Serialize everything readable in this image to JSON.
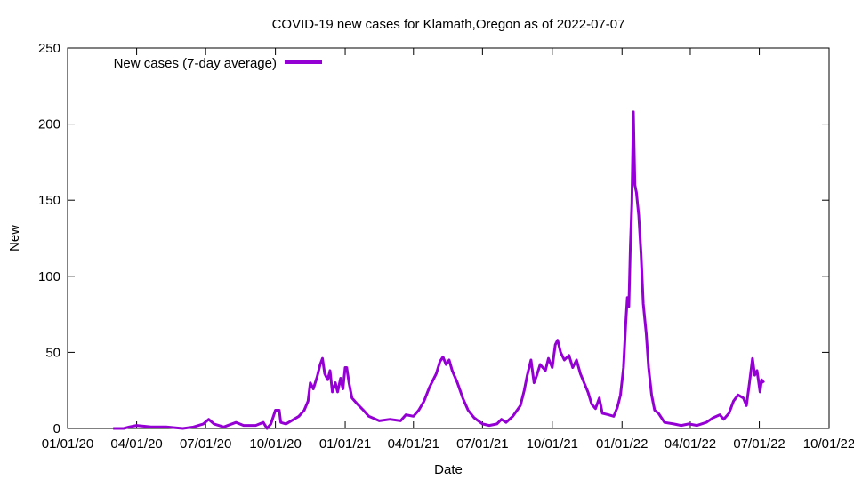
{
  "chart_data": {
    "type": "line",
    "title": "COVID-19 new cases for Klamath,Oregon as of 2022-07-07",
    "xlabel": "Date",
    "ylabel": "New",
    "xlim": [
      "2020-01-01",
      "2022-10-01"
    ],
    "ylim": [
      0,
      250
    ],
    "x_ticks": [
      "01/01/20",
      "04/01/20",
      "07/01/20",
      "10/01/20",
      "01/01/21",
      "04/01/21",
      "07/01/21",
      "10/01/21",
      "01/01/22",
      "04/01/22",
      "07/01/22",
      "10/01/22"
    ],
    "y_ticks": [
      0,
      50,
      100,
      150,
      200,
      250
    ],
    "grid": false,
    "legend": {
      "position": "top-left",
      "entries": [
        "New cases (7-day average)"
      ]
    },
    "series": [
      {
        "name": "New cases (7-day average)",
        "color": "#9400d3",
        "points": [
          [
            "2020-03-01",
            0
          ],
          [
            "2020-03-15",
            0
          ],
          [
            "2020-03-22",
            1
          ],
          [
            "2020-04-01",
            2
          ],
          [
            "2020-04-20",
            1
          ],
          [
            "2020-05-10",
            1
          ],
          [
            "2020-06-01",
            0
          ],
          [
            "2020-06-15",
            1
          ],
          [
            "2020-06-28",
            3
          ],
          [
            "2020-07-05",
            6
          ],
          [
            "2020-07-12",
            3
          ],
          [
            "2020-07-25",
            1
          ],
          [
            "2020-08-10",
            4
          ],
          [
            "2020-08-20",
            2
          ],
          [
            "2020-09-05",
            2
          ],
          [
            "2020-09-15",
            4
          ],
          [
            "2020-09-20",
            0
          ],
          [
            "2020-09-25",
            3
          ],
          [
            "2020-10-01",
            12
          ],
          [
            "2020-10-06",
            12
          ],
          [
            "2020-10-08",
            4
          ],
          [
            "2020-10-15",
            3
          ],
          [
            "2020-11-01",
            8
          ],
          [
            "2020-11-08",
            12
          ],
          [
            "2020-11-13",
            18
          ],
          [
            "2020-11-16",
            30
          ],
          [
            "2020-11-20",
            26
          ],
          [
            "2020-11-25",
            34
          ],
          [
            "2020-11-29",
            42
          ],
          [
            "2020-12-02",
            46
          ],
          [
            "2020-12-05",
            36
          ],
          [
            "2020-12-09",
            32
          ],
          [
            "2020-12-12",
            38
          ],
          [
            "2020-12-15",
            24
          ],
          [
            "2020-12-19",
            30
          ],
          [
            "2020-12-22",
            24
          ],
          [
            "2020-12-26",
            33
          ],
          [
            "2020-12-29",
            26
          ],
          [
            "2021-01-01",
            40
          ],
          [
            "2021-01-03",
            40
          ],
          [
            "2021-01-06",
            30
          ],
          [
            "2021-01-10",
            20
          ],
          [
            "2021-01-17",
            16
          ],
          [
            "2021-01-25",
            12
          ],
          [
            "2021-02-01",
            8
          ],
          [
            "2021-02-15",
            5
          ],
          [
            "2021-03-01",
            6
          ],
          [
            "2021-03-15",
            5
          ],
          [
            "2021-03-22",
            9
          ],
          [
            "2021-04-01",
            8
          ],
          [
            "2021-04-08",
            12
          ],
          [
            "2021-04-15",
            18
          ],
          [
            "2021-04-22",
            27
          ],
          [
            "2021-05-01",
            36
          ],
          [
            "2021-05-06",
            44
          ],
          [
            "2021-05-10",
            47
          ],
          [
            "2021-05-14",
            42
          ],
          [
            "2021-05-18",
            45
          ],
          [
            "2021-05-22",
            38
          ],
          [
            "2021-05-29",
            30
          ],
          [
            "2021-06-05",
            20
          ],
          [
            "2021-06-12",
            12
          ],
          [
            "2021-06-20",
            7
          ],
          [
            "2021-07-01",
            3
          ],
          [
            "2021-07-10",
            2
          ],
          [
            "2021-07-20",
            3
          ],
          [
            "2021-07-26",
            6
          ],
          [
            "2021-08-01",
            4
          ],
          [
            "2021-08-10",
            8
          ],
          [
            "2021-08-20",
            15
          ],
          [
            "2021-08-25",
            25
          ],
          [
            "2021-08-29",
            35
          ],
          [
            "2021-09-03",
            45
          ],
          [
            "2021-09-07",
            30
          ],
          [
            "2021-09-10",
            34
          ],
          [
            "2021-09-15",
            42
          ],
          [
            "2021-09-22",
            38
          ],
          [
            "2021-09-26",
            46
          ],
          [
            "2021-10-01",
            40
          ],
          [
            "2021-10-05",
            55
          ],
          [
            "2021-10-08",
            58
          ],
          [
            "2021-10-12",
            50
          ],
          [
            "2021-10-17",
            45
          ],
          [
            "2021-10-23",
            48
          ],
          [
            "2021-10-28",
            40
          ],
          [
            "2021-11-02",
            45
          ],
          [
            "2021-11-07",
            36
          ],
          [
            "2021-11-12",
            30
          ],
          [
            "2021-11-17",
            24
          ],
          [
            "2021-11-22",
            16
          ],
          [
            "2021-11-27",
            13
          ],
          [
            "2021-12-02",
            20
          ],
          [
            "2021-12-06",
            10
          ],
          [
            "2021-12-14",
            9
          ],
          [
            "2021-12-21",
            8
          ],
          [
            "2021-12-26",
            14
          ],
          [
            "2021-12-30",
            22
          ],
          [
            "2022-01-03",
            40
          ],
          [
            "2022-01-06",
            70
          ],
          [
            "2022-01-08",
            86
          ],
          [
            "2022-01-10",
            80
          ],
          [
            "2022-01-12",
            120
          ],
          [
            "2022-01-14",
            148
          ],
          [
            "2022-01-16",
            208
          ],
          [
            "2022-01-18",
            160
          ],
          [
            "2022-01-20",
            155
          ],
          [
            "2022-01-23",
            140
          ],
          [
            "2022-01-26",
            115
          ],
          [
            "2022-01-29",
            82
          ],
          [
            "2022-02-02",
            62
          ],
          [
            "2022-02-05",
            40
          ],
          [
            "2022-02-09",
            22
          ],
          [
            "2022-02-13",
            12
          ],
          [
            "2022-02-18",
            10
          ],
          [
            "2022-02-26",
            4
          ],
          [
            "2022-03-10",
            3
          ],
          [
            "2022-03-20",
            2
          ],
          [
            "2022-03-30",
            3
          ],
          [
            "2022-04-10",
            2
          ],
          [
            "2022-04-22",
            4
          ],
          [
            "2022-05-01",
            7
          ],
          [
            "2022-05-10",
            9
          ],
          [
            "2022-05-15",
            6
          ],
          [
            "2022-05-22",
            10
          ],
          [
            "2022-05-28",
            18
          ],
          [
            "2022-06-03",
            22
          ],
          [
            "2022-06-10",
            20
          ],
          [
            "2022-06-14",
            15
          ],
          [
            "2022-06-18",
            30
          ],
          [
            "2022-06-22",
            46
          ],
          [
            "2022-06-25",
            35
          ],
          [
            "2022-06-28",
            38
          ],
          [
            "2022-07-02",
            24
          ],
          [
            "2022-07-04",
            32
          ],
          [
            "2022-07-07",
            30
          ]
        ]
      }
    ]
  }
}
